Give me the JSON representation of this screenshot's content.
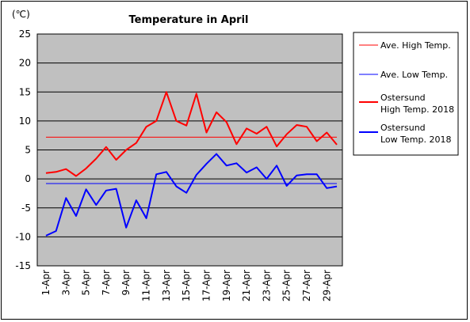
{
  "chart_data": {
    "type": "line",
    "title": "Temperature in April",
    "unit_label": "(℃)",
    "x": [
      "1-Apr",
      "2-Apr",
      "3-Apr",
      "4-Apr",
      "5-Apr",
      "6-Apr",
      "7-Apr",
      "8-Apr",
      "9-Apr",
      "10-Apr",
      "11-Apr",
      "12-Apr",
      "13-Apr",
      "14-Apr",
      "15-Apr",
      "16-Apr",
      "17-Apr",
      "18-Apr",
      "19-Apr",
      "20-Apr",
      "21-Apr",
      "22-Apr",
      "23-Apr",
      "24-Apr",
      "25-Apr",
      "26-Apr",
      "27-Apr",
      "28-Apr",
      "29-Apr",
      "30-Apr"
    ],
    "x_tick_labels": [
      "1-Apr",
      "3-Apr",
      "5-Apr",
      "7-Apr",
      "9-Apr",
      "11-Apr",
      "13-Apr",
      "15-Apr",
      "17-Apr",
      "19-Apr",
      "21-Apr",
      "23-Apr",
      "25-Apr",
      "27-Apr",
      "29-Apr"
    ],
    "y_ticks": [
      25,
      20,
      15,
      10,
      5,
      0,
      -5,
      -10,
      -15
    ],
    "ylim": [
      -15,
      25
    ],
    "grid": true,
    "plot_background": "#c0c0c0",
    "legend_position": "right",
    "series": [
      {
        "name": "Ave. High Temp.",
        "color": "#ff0000",
        "width": 1,
        "values": [
          7.2,
          7.2,
          7.2,
          7.2,
          7.2,
          7.2,
          7.2,
          7.2,
          7.2,
          7.2,
          7.2,
          7.2,
          7.2,
          7.2,
          7.2,
          7.2,
          7.2,
          7.2,
          7.2,
          7.2,
          7.2,
          7.2,
          7.2,
          7.2,
          7.2,
          7.2,
          7.2,
          7.2,
          7.2,
          7.2
        ]
      },
      {
        "name": "Ave. Low Temp.",
        "color": "#0000ff",
        "width": 1,
        "values": [
          -0.8,
          -0.8,
          -0.8,
          -0.8,
          -0.8,
          -0.8,
          -0.8,
          -0.8,
          -0.8,
          -0.8,
          -0.8,
          -0.8,
          -0.8,
          -0.8,
          -0.8,
          -0.8,
          -0.8,
          -0.8,
          -0.8,
          -0.8,
          -0.8,
          -0.8,
          -0.8,
          -0.8,
          -0.8,
          -0.8,
          -0.8,
          -0.8,
          -0.8,
          -0.8
        ]
      },
      {
        "name": "Ostersund\nHigh Temp. 2018",
        "color": "#ff0000",
        "width": 2,
        "values": [
          1.0,
          1.2,
          1.7,
          0.5,
          1.8,
          3.5,
          5.5,
          3.3,
          5.0,
          6.2,
          9.0,
          10.0,
          15.0,
          10.0,
          9.2,
          14.7,
          8.0,
          11.5,
          9.8,
          6.0,
          8.7,
          7.8,
          9.0,
          5.6,
          7.7,
          9.3,
          9.0,
          6.5,
          8.0,
          5.9
        ]
      },
      {
        "name": "Ostersund\nLow Temp. 2018",
        "color": "#0000ff",
        "width": 2,
        "values": [
          -9.8,
          -9.0,
          -3.3,
          -6.4,
          -1.8,
          -4.5,
          -2.0,
          -1.7,
          -8.4,
          -3.7,
          -6.8,
          0.8,
          1.2,
          -1.3,
          -2.4,
          0.7,
          2.6,
          4.3,
          2.3,
          2.7,
          1.1,
          2.0,
          0.0,
          2.3,
          -1.2,
          0.6,
          0.8,
          0.8,
          -1.6,
          -1.3
        ]
      }
    ]
  }
}
